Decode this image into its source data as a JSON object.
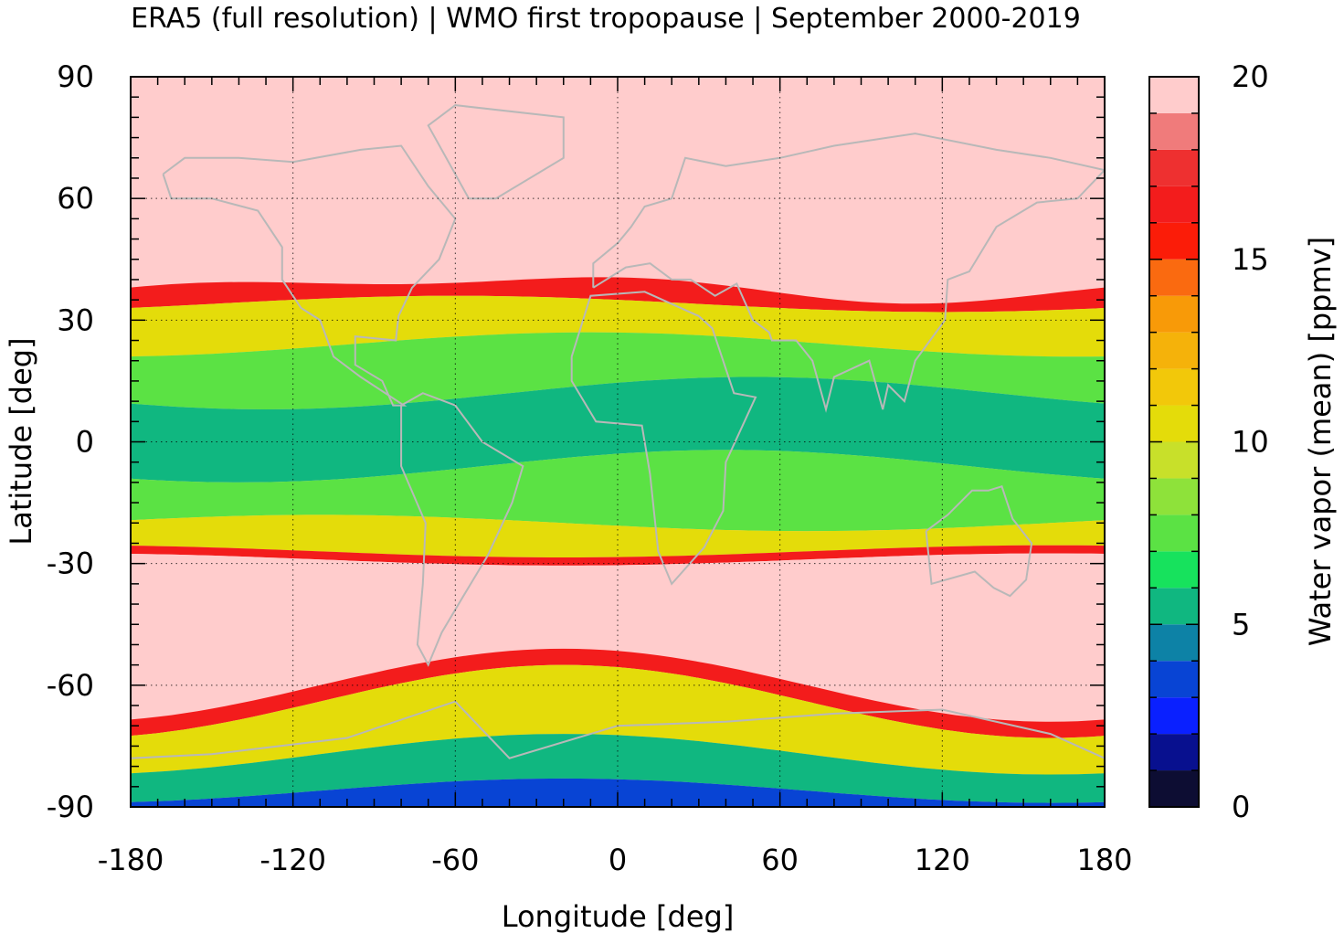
{
  "title": "ERA5 (full resolution) | WMO first tropopause | September 2000-2019",
  "xlabel": "Longitude [deg]",
  "ylabel": "Latitude [deg]",
  "colorbar_label": "Water vapor (mean) [ppmv]",
  "map": {
    "type": "filled-contour map",
    "projection": "equirectangular",
    "xlim": [
      -180,
      180
    ],
    "ylim": [
      -90,
      90
    ],
    "xticks": [
      -180,
      -120,
      -60,
      0,
      60,
      120,
      180
    ],
    "yticks": [
      90,
      60,
      30,
      0,
      -30,
      -60,
      -90
    ],
    "x_tick_labels": [
      "-180",
      "-120",
      "-60",
      "0",
      "60",
      "120",
      "180"
    ],
    "y_tick_labels": [
      "90",
      "60",
      "30",
      "0",
      "-30",
      "-60",
      "-90"
    ],
    "grid": "dotted, at labeled ticks",
    "coastline_color": "#b8b8b8"
  },
  "colorbar": {
    "range": [
      0,
      20
    ],
    "ticks": [
      0,
      5,
      10,
      15,
      20
    ],
    "tick_labels": [
      "0",
      "5",
      "10",
      "15",
      "20"
    ],
    "levels": [
      {
        "lo": 0,
        "hi": 1,
        "color": "#0d0d33"
      },
      {
        "lo": 1,
        "hi": 2,
        "color": "#08108f"
      },
      {
        "lo": 2,
        "hi": 3,
        "color": "#0a20ff"
      },
      {
        "lo": 3,
        "hi": 4,
        "color": "#0844d4"
      },
      {
        "lo": 4,
        "hi": 5,
        "color": "#0d82a6"
      },
      {
        "lo": 5,
        "hi": 6,
        "color": "#10b780"
      },
      {
        "lo": 6,
        "hi": 7,
        "color": "#17e25d"
      },
      {
        "lo": 7,
        "hi": 8,
        "color": "#5be244"
      },
      {
        "lo": 8,
        "hi": 9,
        "color": "#8ee23a"
      },
      {
        "lo": 9,
        "hi": 10,
        "color": "#c8e02a"
      },
      {
        "lo": 10,
        "hi": 11,
        "color": "#e4dc0a"
      },
      {
        "lo": 11,
        "hi": 12,
        "color": "#f2c80a"
      },
      {
        "lo": 12,
        "hi": 13,
        "color": "#f5b20a"
      },
      {
        "lo": 13,
        "hi": 14,
        "color": "#f89a08"
      },
      {
        "lo": 14,
        "hi": 15,
        "color": "#fa6a10"
      },
      {
        "lo": 15,
        "hi": 16,
        "color": "#fb1c08"
      },
      {
        "lo": 16,
        "hi": 17,
        "color": "#f31c1c"
      },
      {
        "lo": 17,
        "hi": 18,
        "color": "#ee3030"
      },
      {
        "lo": 18,
        "hi": 19,
        "color": "#f07b7b"
      },
      {
        "lo": 19,
        "hi": 20,
        "color": "#ffcccc"
      }
    ]
  },
  "field": {
    "description_values_ppmv": {
      "polar_and_midlatitude_stratosphere": 20,
      "subtropical_jet_edge": 16,
      "tropical_background": 7,
      "tropical_minimum": 5,
      "antarctic_interior": 3.5
    },
    "bands": [
      {
        "name": "northern-high",
        "value": 20
      },
      {
        "name": "northern-jet",
        "value": 16
      },
      {
        "name": "northern-subtropics",
        "value": 10
      },
      {
        "name": "tropics-upper",
        "value": 7
      },
      {
        "name": "tropics-core",
        "value": 5
      },
      {
        "name": "tropics-lower",
        "value": 7
      },
      {
        "name": "southern-subtropics",
        "value": 10
      },
      {
        "name": "southern-jet",
        "value": 16
      },
      {
        "name": "southern-midlatitude",
        "value": 20
      },
      {
        "name": "southern-jet-2",
        "value": 16
      },
      {
        "name": "southern-high-gradient",
        "value": 10
      },
      {
        "name": "antarctic-edge",
        "value": 5
      },
      {
        "name": "antarctic-interior",
        "value": 3.5
      }
    ]
  }
}
